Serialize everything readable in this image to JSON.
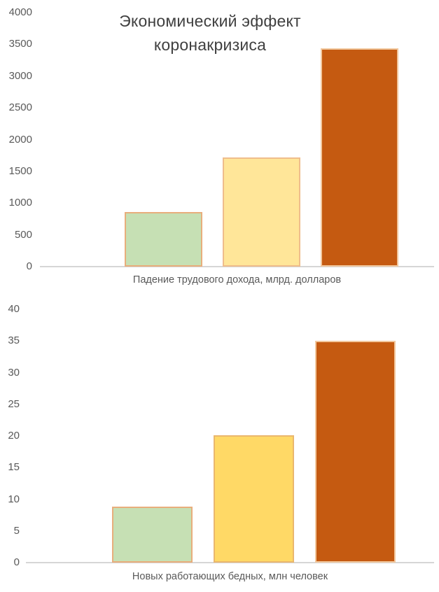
{
  "page": {
    "background_color": "#ffffff",
    "title_color": "#404040",
    "tick_label_color": "#595959",
    "axis_line_color": "#d6d6d6"
  },
  "chart_data": [
    {
      "type": "bar",
      "title": "Экономический эффект коронакризиса",
      "title_lines": [
        "Экономический эффект",
        "коронакризиса"
      ],
      "xlabel": "Падение трудового дохода, млрд. долларов",
      "values": [
        860,
        1720,
        3440
      ],
      "bar_colors": [
        "#c6e0b4",
        "#ffe699",
        "#c55a11"
      ],
      "bar_border_colors": [
        "#e8ae7c",
        "#efbd8c",
        "#f2c89e"
      ],
      "ylim": [
        0,
        4000
      ],
      "yticks": [
        0,
        500,
        1000,
        1500,
        2000,
        2500,
        3000,
        3500,
        4000
      ],
      "grid": false,
      "legend": false
    },
    {
      "type": "bar",
      "title": "",
      "xlabel": "Новых работающих бедных, млн человек",
      "values": [
        8.8,
        20.1,
        35
      ],
      "bar_colors": [
        "#c6e0b4",
        "#ffd966",
        "#c55a11"
      ],
      "bar_border_colors": [
        "#e8ae7c",
        "#eab76e",
        "#f2c89e"
      ],
      "ylim": [
        0,
        40
      ],
      "yticks": [
        0,
        5,
        10,
        15,
        20,
        25,
        30,
        35,
        40
      ],
      "grid": false,
      "legend": false
    }
  ]
}
